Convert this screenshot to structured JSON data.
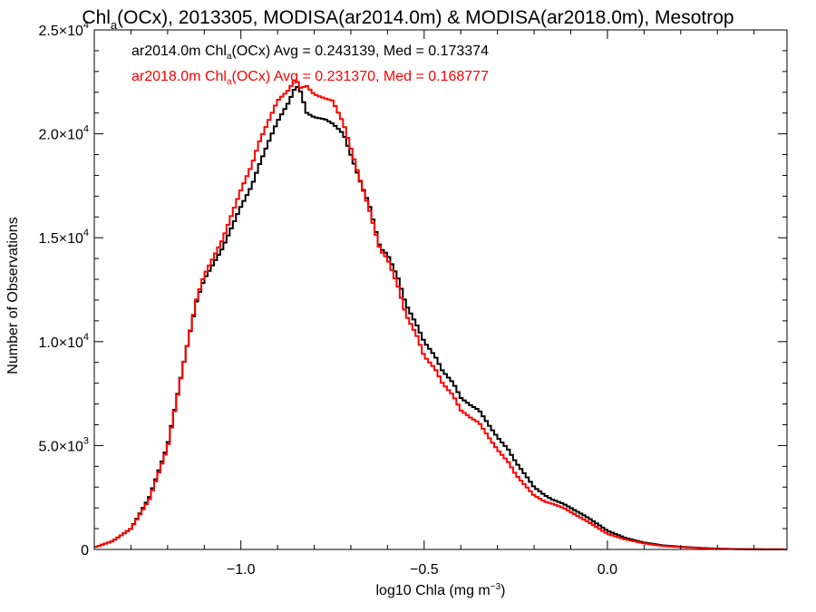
{
  "chart_data": {
    "type": "line",
    "title_parts": [
      "Chl",
      "a",
      "(OCx), 2013305, MODISA(ar2014.0m) & MODISA(ar2018.0m), Mesotrop"
    ],
    "xlabel_parts": [
      "log10 Chla (mg m",
      "−3",
      ")"
    ],
    "ylabel": "Number of Observations",
    "xlim": [
      -1.4,
      0.49
    ],
    "ylim": [
      0,
      25000
    ],
    "x_ticks": [
      {
        "value": -1.0,
        "label": "−1.0"
      },
      {
        "value": -0.5,
        "label": "−0.5"
      },
      {
        "value": 0.0,
        "label": "0.0"
      }
    ],
    "y_ticks": [
      {
        "value": 0,
        "mant": "0",
        "exp": ""
      },
      {
        "value": 5000,
        "mant": "5.0×10",
        "exp": "3"
      },
      {
        "value": 10000,
        "mant": "1.0×10",
        "exp": "4"
      },
      {
        "value": 15000,
        "mant": "1.5×10",
        "exp": "4"
      },
      {
        "value": 20000,
        "mant": "2.0×10",
        "exp": "4"
      },
      {
        "value": 25000,
        "mant": "2.5×10",
        "exp": "4"
      }
    ],
    "series": [
      {
        "color": "#000000",
        "legend_parts": [
          "ar2014.0m Chl",
          "a",
          "(OCx) Avg = 0.243139, Med = 0.173374"
        ],
        "x": [
          -1.4,
          -1.35,
          -1.3,
          -1.25,
          -1.2,
          -1.15,
          -1.12,
          -1.1,
          -1.05,
          -1.0,
          -0.97,
          -0.95,
          -0.92,
          -0.9,
          -0.87,
          -0.85,
          -0.84,
          -0.82,
          -0.8,
          -0.77,
          -0.75,
          -0.72,
          -0.7,
          -0.67,
          -0.65,
          -0.62,
          -0.6,
          -0.57,
          -0.55,
          -0.52,
          -0.5,
          -0.47,
          -0.45,
          -0.42,
          -0.4,
          -0.37,
          -0.35,
          -0.32,
          -0.3,
          -0.27,
          -0.25,
          -0.22,
          -0.2,
          -0.17,
          -0.15,
          -0.12,
          -0.1,
          -0.05,
          0.0,
          0.05,
          0.1,
          0.15,
          0.2,
          0.25,
          0.3,
          0.35,
          0.4,
          0.45,
          0.49
        ],
        "y": [
          100,
          400,
          1000,
          2500,
          5000,
          9500,
          12000,
          13000,
          14500,
          16500,
          17500,
          18500,
          19800,
          20600,
          21500,
          22300,
          22200,
          21000,
          20800,
          20700,
          20500,
          20000,
          19000,
          17500,
          16600,
          14500,
          14200,
          13000,
          11800,
          10800,
          10000,
          9300,
          8600,
          8000,
          7300,
          6900,
          6700,
          5900,
          5400,
          4800,
          4200,
          3500,
          3000,
          2600,
          2400,
          2200,
          2000,
          1500,
          900,
          550,
          330,
          200,
          130,
          80,
          40,
          20,
          10,
          5,
          2
        ]
      },
      {
        "color": "#ff0000",
        "legend_parts": [
          "ar2018.0m Chl",
          "a",
          "(OCx) Avg = 0.231370, Med = 0.168777"
        ],
        "x": [
          -1.4,
          -1.35,
          -1.3,
          -1.25,
          -1.2,
          -1.15,
          -1.12,
          -1.1,
          -1.05,
          -1.0,
          -0.97,
          -0.95,
          -0.92,
          -0.9,
          -0.87,
          -0.85,
          -0.84,
          -0.82,
          -0.8,
          -0.77,
          -0.75,
          -0.72,
          -0.7,
          -0.67,
          -0.65,
          -0.62,
          -0.6,
          -0.57,
          -0.55,
          -0.52,
          -0.5,
          -0.47,
          -0.45,
          -0.42,
          -0.4,
          -0.37,
          -0.35,
          -0.32,
          -0.3,
          -0.27,
          -0.25,
          -0.22,
          -0.2,
          -0.17,
          -0.15,
          -0.12,
          -0.1,
          -0.05,
          0.0,
          0.05,
          0.1,
          0.15,
          0.2,
          0.25,
          0.3,
          0.35,
          0.4,
          0.45,
          0.49
        ],
        "y": [
          100,
          400,
          1000,
          2400,
          4900,
          9500,
          12100,
          13200,
          14900,
          17300,
          18500,
          19600,
          20800,
          21600,
          22100,
          22700,
          22200,
          22300,
          21900,
          21700,
          21600,
          20500,
          19300,
          17500,
          16400,
          14400,
          14000,
          12600,
          11300,
          10300,
          9300,
          8700,
          8000,
          7400,
          6700,
          6300,
          6100,
          5300,
          4800,
          4200,
          3600,
          3000,
          2600,
          2300,
          2200,
          2000,
          1800,
          1300,
          750,
          480,
          290,
          170,
          110,
          70,
          35,
          18,
          8,
          4,
          2
        ]
      }
    ]
  }
}
